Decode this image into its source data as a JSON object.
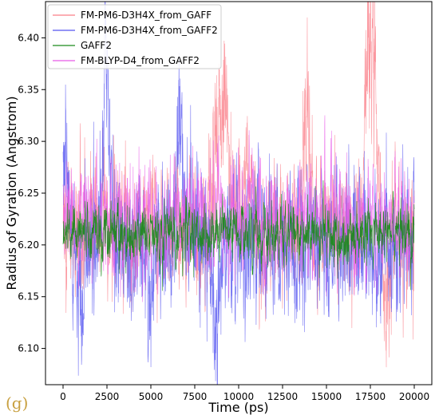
{
  "panel_label": "(g)",
  "chart_data": {
    "type": "line",
    "title": "",
    "xlabel": "Time (ps)",
    "ylabel": "Radius of Gyration (Angstrom)",
    "xlim": [
      -1000,
      21000
    ],
    "ylim": [
      6.065,
      6.435
    ],
    "xticks": [
      0,
      2500,
      5000,
      7500,
      10000,
      12500,
      15000,
      17500,
      20000
    ],
    "yticks": [
      6.1,
      6.15,
      6.2,
      6.25,
      6.3,
      6.35,
      6.4
    ],
    "legend_position": "upper-left",
    "grid": false,
    "n_points": 2000,
    "series": [
      {
        "name": "FM-PM6-D3H4X_from_GAFF",
        "color": "#fa7d87",
        "baseline": 6.215,
        "spread": 0.026,
        "peaks": [
          {
            "x": 8600,
            "y": 6.385
          },
          {
            "x": 9200,
            "y": 6.395
          },
          {
            "x": 10500,
            "y": 6.31
          },
          {
            "x": 13900,
            "y": 6.375
          },
          {
            "x": 17300,
            "y": 6.4
          },
          {
            "x": 17700,
            "y": 6.42
          }
        ],
        "dips": [
          {
            "x": 8500,
            "y": 6.145
          },
          {
            "x": 18400,
            "y": 6.12
          }
        ]
      },
      {
        "name": "FM-PM6-D3H4X_from_GAFF2",
        "color": "#5555f0",
        "baseline": 6.205,
        "spread": 0.03,
        "peaks": [
          {
            "x": 100,
            "y": 6.33
          },
          {
            "x": 2400,
            "y": 6.305
          },
          {
            "x": 2500,
            "y": 6.32
          },
          {
            "x": 6600,
            "y": 6.31
          }
        ],
        "dips": [
          {
            "x": 1000,
            "y": 6.1
          },
          {
            "x": 8700,
            "y": 6.08
          },
          {
            "x": 5000,
            "y": 6.105
          }
        ]
      },
      {
        "name": "GAFF2",
        "color": "#1a8a1a",
        "baseline": 6.212,
        "spread": 0.012,
        "peaks": [],
        "dips": []
      },
      {
        "name": "FM-BLYP-D4_from_GAFF2",
        "color": "#e85ae8",
        "baseline": 6.225,
        "spread": 0.022,
        "peaks": [],
        "dips": []
      }
    ]
  }
}
